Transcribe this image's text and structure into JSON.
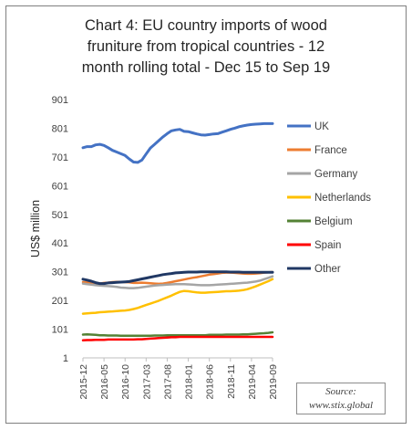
{
  "chart_data": {
    "type": "line",
    "title_lines": [
      "Chart 4: EU country imports of wood",
      "fruniture from tropical countries - 12",
      "month rolling total - Dec 15 to Sep 19"
    ],
    "ylabel": "US$ million",
    "xlabel": "",
    "ylim": [
      1,
      901
    ],
    "yticks": [
      "901",
      "801",
      "701",
      "601",
      "501",
      "401",
      "301",
      "201",
      "101",
      "1"
    ],
    "x_tick_labels": [
      "2015-12",
      "2016-05",
      "2016-10",
      "2017-03",
      "2017-08",
      "2018-01",
      "2018-06",
      "2018-11",
      "2019-04",
      "2019-09"
    ],
    "x_tick_months_index": [
      0,
      5,
      10,
      15,
      20,
      25,
      30,
      35,
      40,
      45
    ],
    "n_points": 46,
    "legend_position": "right",
    "grid": false,
    "series": [
      {
        "name": "UK",
        "color": "#4472c4",
        "width": 3,
        "values": [
          733,
          737,
          737,
          743,
          745,
          741,
          733,
          724,
          718,
          712,
          706,
          694,
          683,
          682,
          690,
          711,
          732,
          745,
          758,
          771,
          782,
          792,
          795,
          797,
          790,
          789,
          785,
          781,
          778,
          777,
          779,
          781,
          782,
          787,
          792,
          797,
          801,
          806,
          809,
          812,
          814,
          815,
          816,
          817,
          817,
          817
        ]
      },
      {
        "name": "France",
        "color": "#ed7d31",
        "width": 2.5,
        "values": [
          265,
          264,
          262,
          261,
          260,
          262,
          263,
          265,
          266,
          266,
          265,
          264,
          262,
          262,
          263,
          262,
          261,
          260,
          259,
          260,
          262,
          265,
          268,
          271,
          274,
          277,
          280,
          282,
          285,
          288,
          291,
          293,
          295,
          297,
          298,
          298,
          297,
          296,
          295,
          294,
          294,
          295,
          296,
          298,
          299,
          300
        ]
      },
      {
        "name": "Germany",
        "color": "#a5a5a5",
        "width": 2.5,
        "values": [
          260,
          258,
          256,
          254,
          253,
          252,
          251,
          250,
          248,
          246,
          245,
          244,
          244,
          245,
          247,
          249,
          251,
          253,
          254,
          255,
          256,
          257,
          258,
          258,
          258,
          257,
          256,
          255,
          254,
          254,
          254,
          255,
          256,
          257,
          258,
          259,
          260,
          261,
          262,
          263,
          265,
          267,
          270,
          275,
          280,
          285
        ]
      },
      {
        "name": "Netherlands",
        "color": "#ffc000",
        "width": 2.5,
        "values": [
          155,
          156,
          157,
          158,
          160,
          161,
          162,
          163,
          164,
          165,
          166,
          168,
          171,
          175,
          180,
          185,
          190,
          195,
          200,
          206,
          212,
          218,
          225,
          231,
          234,
          233,
          231,
          229,
          228,
          228,
          229,
          230,
          231,
          232,
          233,
          233,
          234,
          235,
          237,
          240,
          245,
          250,
          256,
          262,
          268,
          275
        ]
      },
      {
        "name": "Belgium",
        "color": "#548235",
        "width": 2.5,
        "values": [
          82,
          83,
          82,
          81,
          80,
          80,
          79,
          79,
          79,
          78,
          78,
          78,
          78,
          78,
          78,
          78,
          78,
          79,
          79,
          79,
          80,
          80,
          80,
          80,
          80,
          80,
          80,
          80,
          80,
          80,
          81,
          81,
          81,
          81,
          82,
          82,
          82,
          82,
          83,
          83,
          84,
          85,
          86,
          87,
          88,
          90
        ]
      },
      {
        "name": "Spain",
        "color": "#ff0000",
        "width": 2.5,
        "values": [
          62,
          63,
          63,
          64,
          64,
          64,
          65,
          65,
          65,
          65,
          65,
          65,
          65,
          66,
          66,
          67,
          68,
          69,
          70,
          71,
          72,
          73,
          73,
          74,
          74,
          74,
          74,
          74,
          74,
          74,
          74,
          74,
          74,
          74,
          74,
          74,
          74,
          74,
          74,
          74,
          74,
          74,
          74,
          74,
          74,
          74
        ]
      },
      {
        "name": "Other",
        "color": "#203864",
        "width": 3,
        "values": [
          275,
          272,
          268,
          263,
          260,
          260,
          262,
          263,
          264,
          265,
          266,
          267,
          270,
          273,
          276,
          279,
          282,
          285,
          288,
          291,
          293,
          295,
          297,
          298,
          299,
          300,
          300,
          300,
          301,
          301,
          301,
          301,
          301,
          301,
          301,
          300,
          300,
          300,
          299,
          299,
          299,
          299,
          299,
          299,
          299,
          299
        ]
      }
    ]
  },
  "source": {
    "line1": "Source:",
    "line2": "www.stix.global"
  }
}
